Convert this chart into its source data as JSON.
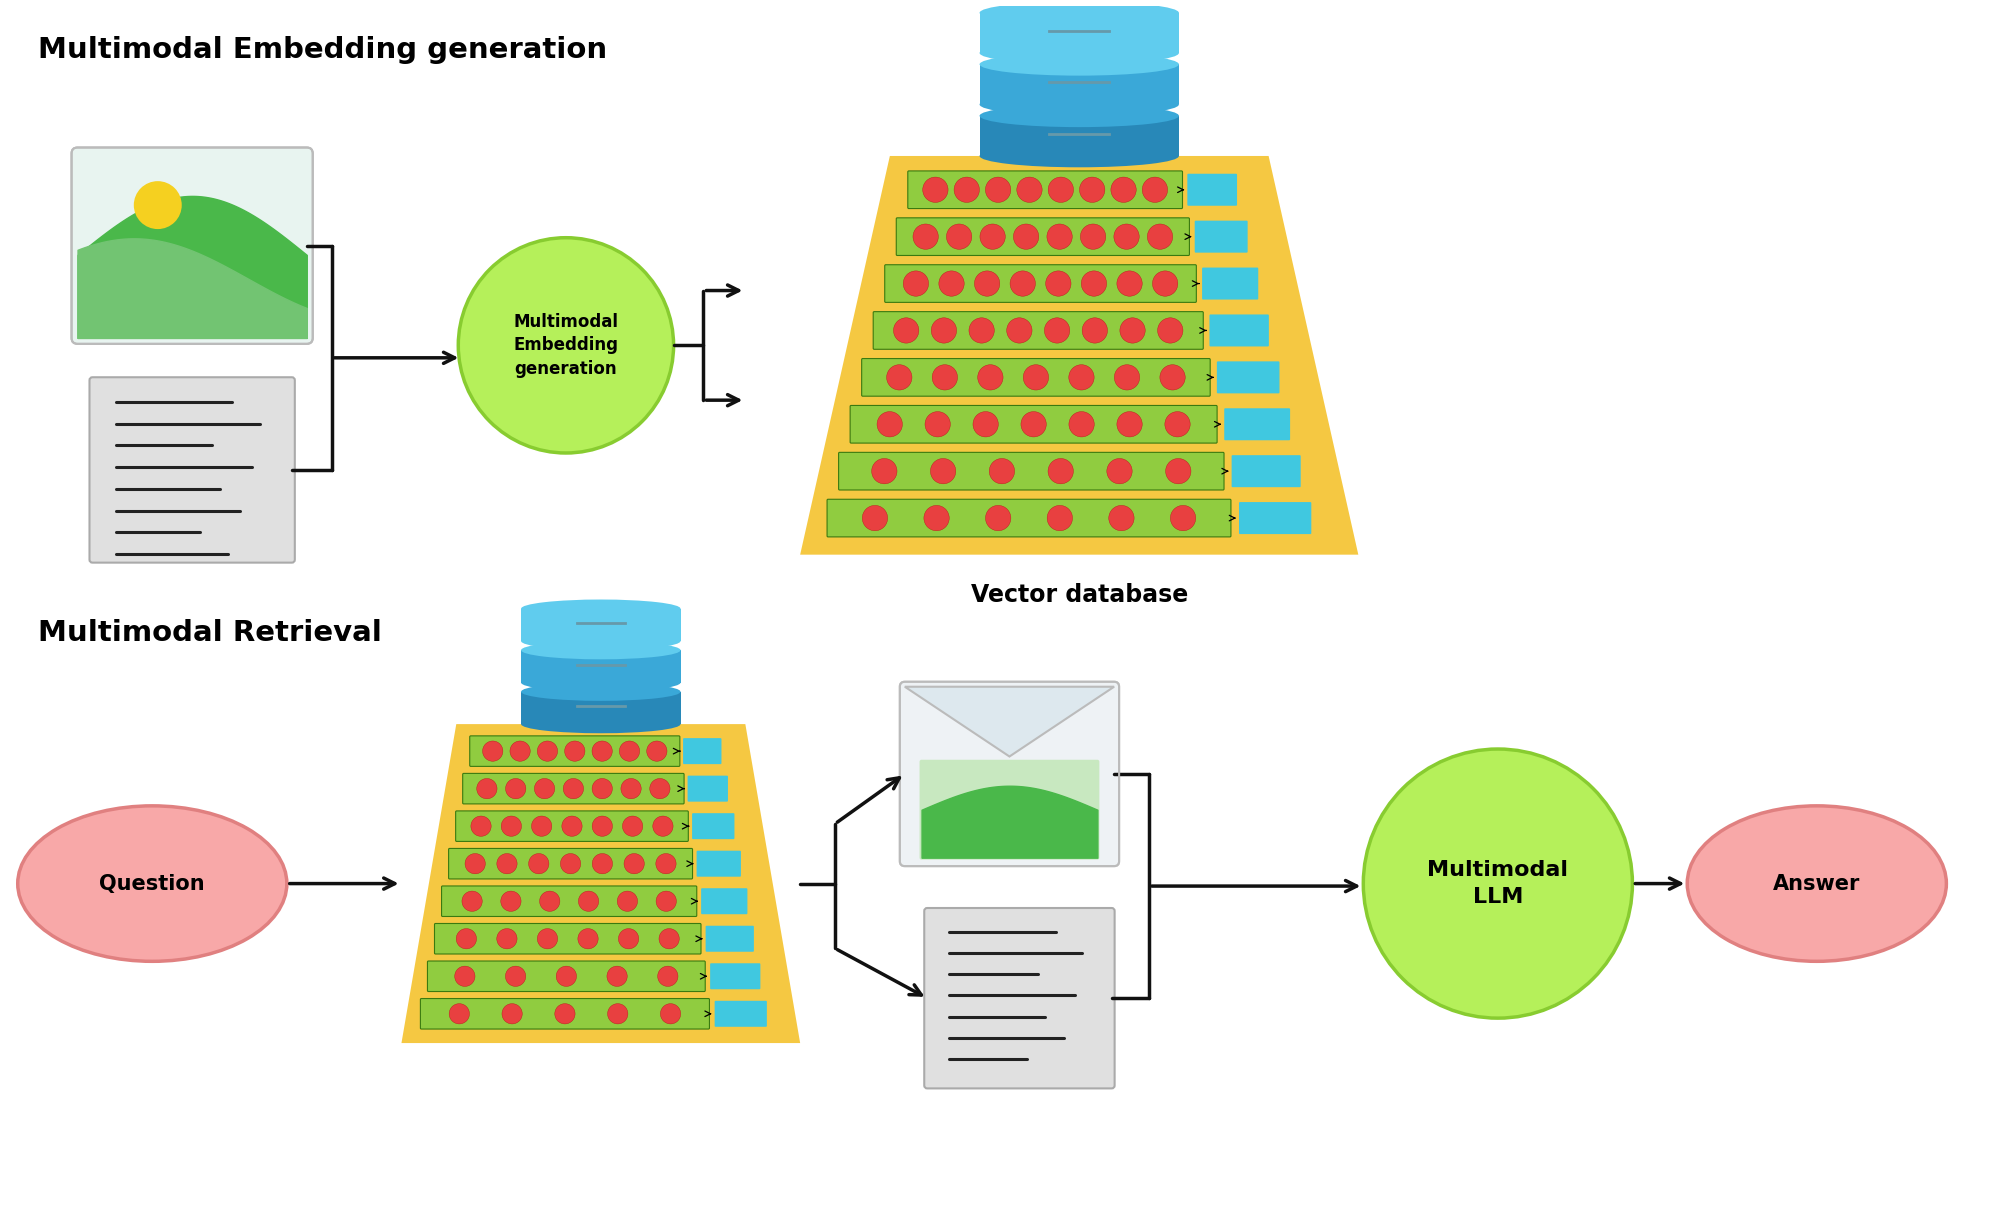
{
  "title_top": "Multimodal Embedding generation",
  "title_bottom": "Multimodal Retrieval",
  "vector_db_label": "Vector database",
  "embedding_circle_label": "Multimodal\nEmbedding\ngeneration",
  "llm_circle_label": "Multimodal\nLLM",
  "question_label": "Question",
  "answer_label": "Answer",
  "colors": {
    "background": "#ffffff",
    "image_icon_bg": "#e8f4f0",
    "image_icon_hill1": "#4ab84a",
    "image_icon_hill2": "#72c472",
    "image_icon_sun": "#f5d020",
    "doc_bg": "#e0e0e0",
    "doc_line": "#222222",
    "green_circle": "#b5f05a",
    "green_circle_stroke": "#88cc30",
    "trapezoid": "#f5c842",
    "embedding_row_bg": "#90cc40",
    "embedding_dot": "#e84040",
    "embedding_cyan": "#40c8e0",
    "db_blue_light": "#60ccee",
    "db_blue_mid": "#3aa8d8",
    "db_blue_dark": "#2888b8",
    "db_stripe": "#6699aa",
    "pink_ellipse": "#f8a8a8",
    "pink_ellipse_stroke": "#e08080",
    "arrow_color": "#111111"
  }
}
